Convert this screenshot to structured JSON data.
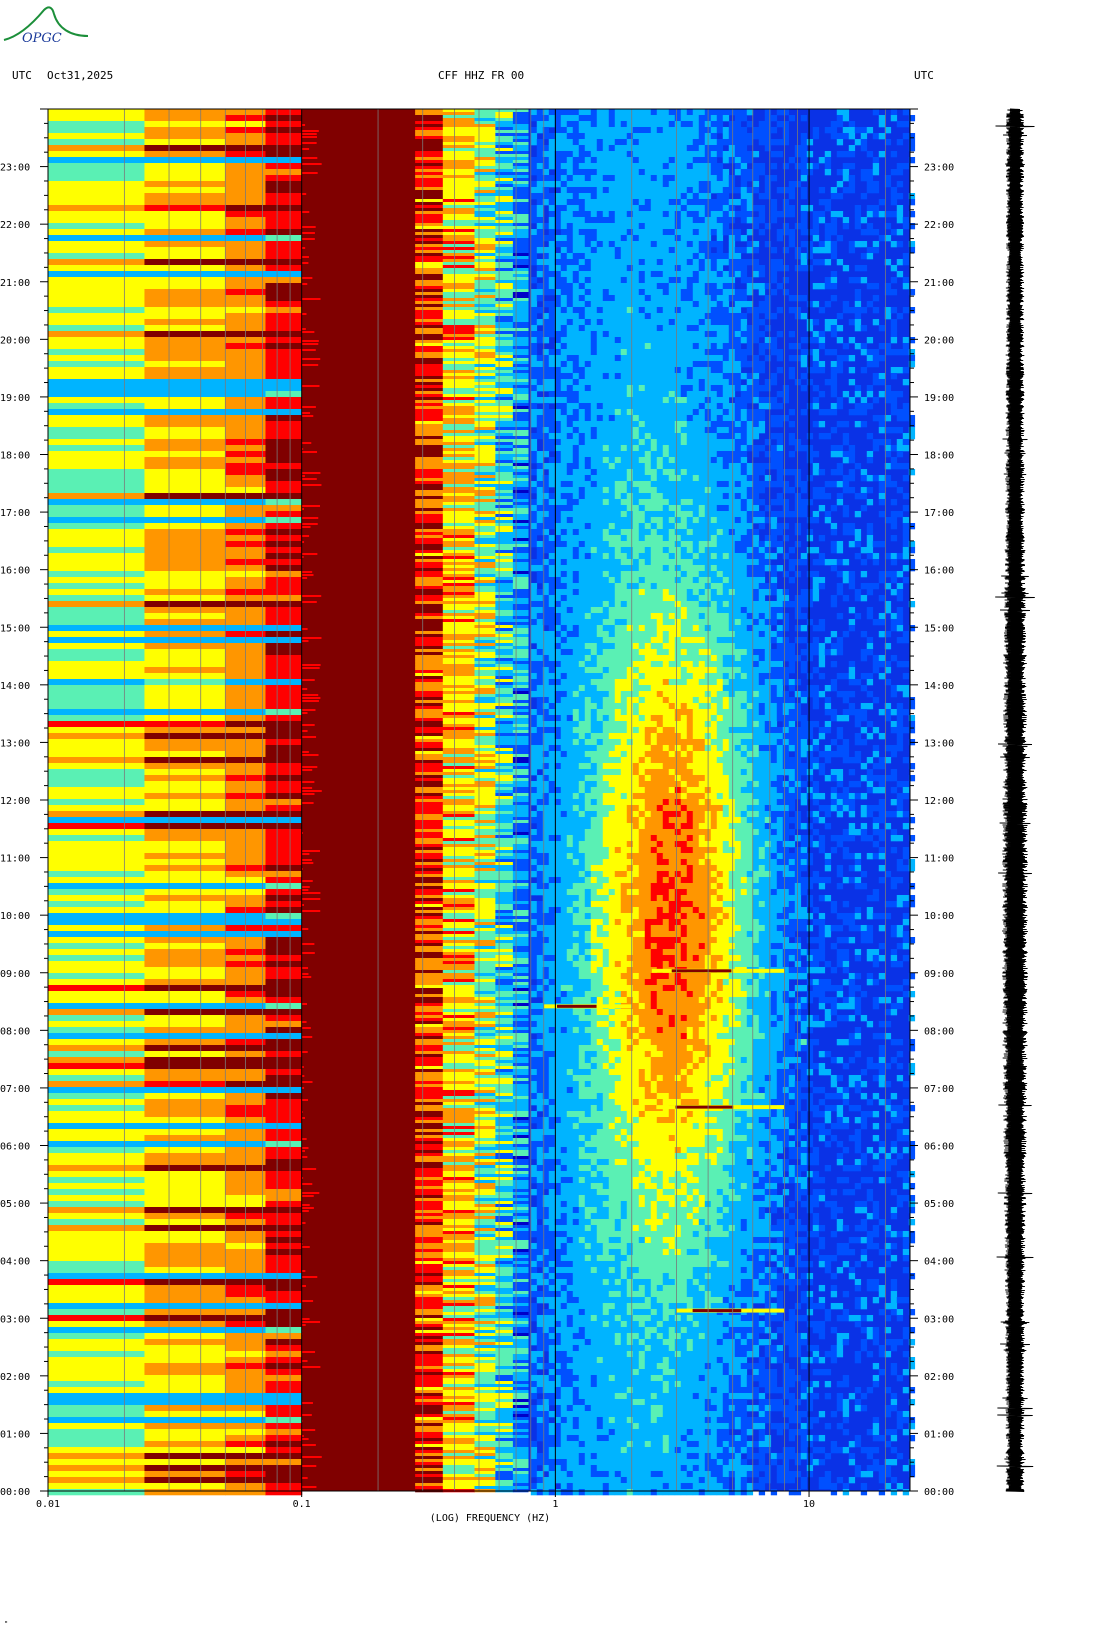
{
  "logo": {
    "text": "OPGC",
    "color": "#1c8f3a"
  },
  "header": {
    "left_tz": "UTC",
    "date": "Oct31,2025",
    "station": "CFF HHZ FR 00",
    "right_tz": "UTC"
  },
  "chart_data": {
    "type": "heatmap",
    "title": "CFF HHZ FR 00",
    "xlabel": "(LOG) FREQUENCY (HZ)",
    "ylabel": "UTC",
    "x_scale": "log",
    "xlim": [
      0.01,
      25
    ],
    "x_ticks": [
      {
        "value": 0.01,
        "label": "0.01"
      },
      {
        "value": 0.1,
        "label": "0.1"
      },
      {
        "value": 1,
        "label": "1"
      },
      {
        "value": 10,
        "label": "10"
      }
    ],
    "ylim_hours": [
      0,
      24
    ],
    "y_ticks": [
      "00:00",
      "01:00",
      "02:00",
      "03:00",
      "04:00",
      "05:00",
      "06:00",
      "07:00",
      "08:00",
      "09:00",
      "10:00",
      "11:00",
      "12:00",
      "13:00",
      "14:00",
      "15:00",
      "16:00",
      "17:00",
      "18:00",
      "19:00",
      "20:00",
      "21:00",
      "22:00",
      "23:00"
    ],
    "colorscale": [
      "#0000c8",
      "#0050ff",
      "#00b4ff",
      "#5af0b4",
      "#ffff00",
      "#ff9600",
      "#ff0000",
      "#800000"
    ],
    "events": [
      {
        "time": "08:25",
        "freq_hz": [
          0.9,
          2.0
        ]
      },
      {
        "time": "09:02",
        "freq_hz": [
          2.4,
          8.0
        ]
      },
      {
        "time": "06:40",
        "freq_hz": [
          2.5,
          8.0
        ]
      },
      {
        "time": "03:08",
        "freq_hz": [
          3.0,
          8.0
        ]
      }
    ],
    "seismogram": "vertical trace, right panel"
  },
  "footer": {
    "mark": "\""
  }
}
